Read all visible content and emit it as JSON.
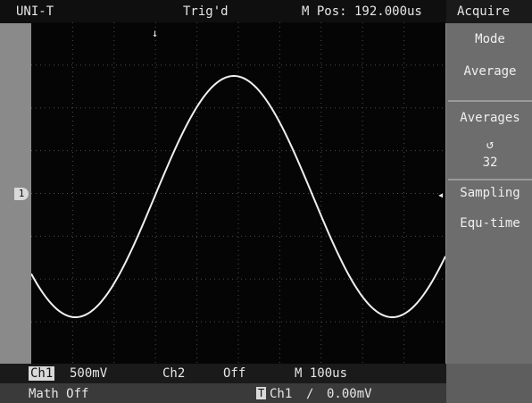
{
  "top": {
    "brand": "UNI-T",
    "trigger_status": "Trig'd",
    "main_position": "M Pos: 192.000us"
  },
  "side_menu": {
    "title": "Acquire",
    "mode_label": "Mode",
    "mode_value": "Average",
    "averages_label": "Averages",
    "averages_symbol": "↺",
    "averages_value": "32",
    "sampling_label": "Sampling",
    "sampling_value": "Equ-time"
  },
  "bottom": {
    "ch1_label": "Ch1",
    "ch1_volts": "500mV",
    "ch2_label": "Ch2",
    "ch2_state": "Off",
    "timebase": "M 100us",
    "math_label": "Math Off",
    "trigger_tag": "T",
    "trigger_channel": "Ch1",
    "trigger_slope": "∕",
    "trigger_level": "0.00mV"
  },
  "markers": {
    "channel_marker": "1",
    "trigger_time_marker": "↓",
    "trigger_level_marker": "◂"
  },
  "colors": {
    "screen": "#050505",
    "grid": "#4d4d4d",
    "trace": "#f0f0f0",
    "menu": "#6d6d6d",
    "topbar": "#0f0f0f"
  }
}
